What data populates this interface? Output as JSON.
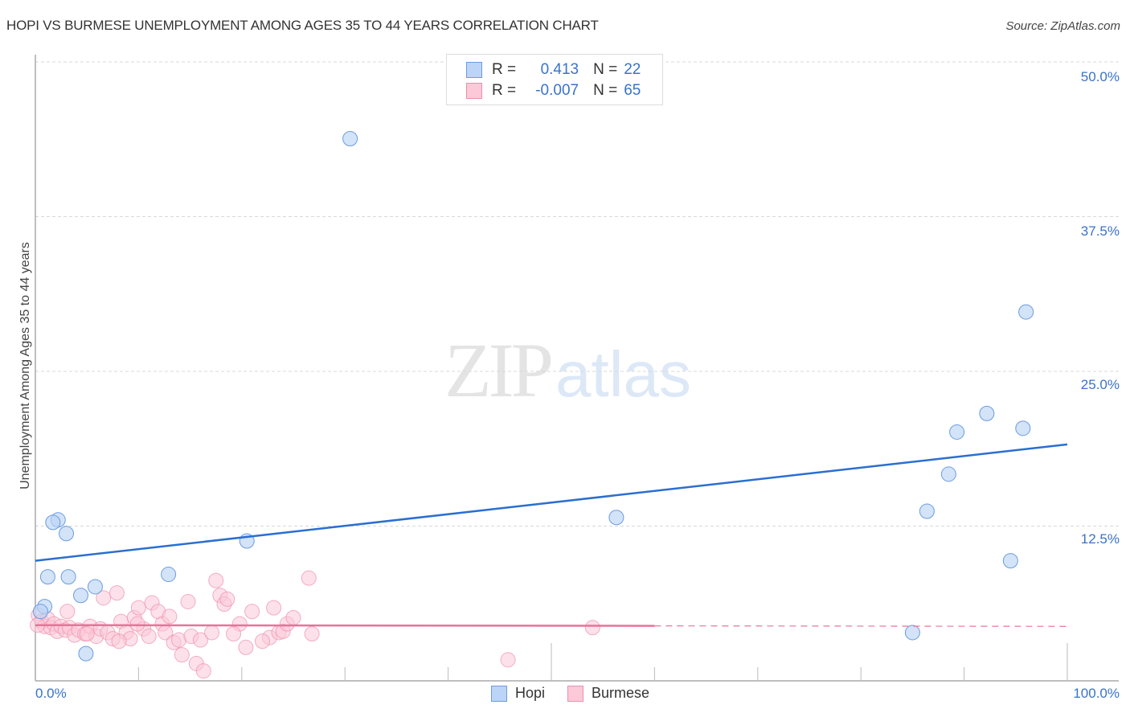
{
  "header": {
    "title": "HOPI VS BURMESE UNEMPLOYMENT AMONG AGES 35 TO 44 YEARS CORRELATION CHART",
    "source": "Source: ZipAtlas.com"
  },
  "watermark": {
    "zip": "ZIP",
    "atlas": "atlas"
  },
  "legend_top": {
    "rows": [
      {
        "series": "Hopi",
        "r_label": "R =",
        "r_value": "0.413",
        "n_label": "N =",
        "n_value": "22"
      },
      {
        "series": "Burmese",
        "r_label": "R =",
        "r_value": "-0.007",
        "n_label": "N =",
        "n_value": "65"
      }
    ]
  },
  "legend_bottom": {
    "items": [
      "Hopi",
      "Burmese"
    ]
  },
  "axes": {
    "ylabel": "Unemployment Among Ages 35 to 44 years",
    "yticks": [
      "50.0%",
      "37.5%",
      "25.0%",
      "12.5%"
    ],
    "xticks": [
      "0.0%",
      "100.0%"
    ]
  },
  "colors": {
    "hopi_fill": "#bcd4f5",
    "hopi_stroke": "#6b9de0",
    "hopi_line": "#2b6fd0",
    "burmese_fill": "#fbc9d8",
    "burmese_stroke": "#ec8fab",
    "burmese_line": "#e8739a",
    "tick_text": "#3a72c9"
  },
  "chart_data": {
    "type": "scatter",
    "title": "HOPI VS BURMESE UNEMPLOYMENT AMONG AGES 35 TO 44 YEARS CORRELATION CHART",
    "xlabel": "",
    "ylabel": "Unemployment Among Ages 35 to 44 years",
    "xlim": [
      0,
      100
    ],
    "ylim": [
      0,
      52
    ],
    "x_ticks": [
      "0.0%",
      "100.0%"
    ],
    "y_ticks": [
      "12.5%",
      "25.0%",
      "37.5%",
      "50.0%"
    ],
    "grid": true,
    "legend_position": "bottom-center",
    "series": [
      {
        "name": "Hopi",
        "R": 0.413,
        "N": 22,
        "trend": {
          "x": [
            0,
            100
          ],
          "y": [
            9.7,
            19.1
          ],
          "style": "solid"
        },
        "points": [
          [
            30.5,
            43.8
          ],
          [
            96.0,
            29.8
          ],
          [
            92.2,
            21.6
          ],
          [
            89.3,
            20.1
          ],
          [
            95.7,
            20.4
          ],
          [
            88.5,
            16.7
          ],
          [
            86.4,
            13.7
          ],
          [
            56.3,
            13.2
          ],
          [
            94.5,
            9.7
          ],
          [
            85.0,
            3.9
          ],
          [
            2.2,
            13.0
          ],
          [
            1.7,
            12.8
          ],
          [
            3.0,
            11.9
          ],
          [
            20.5,
            11.3
          ],
          [
            1.2,
            8.4
          ],
          [
            3.2,
            8.4
          ],
          [
            12.9,
            8.6
          ],
          [
            5.8,
            7.6
          ],
          [
            4.4,
            6.9
          ],
          [
            0.9,
            6.0
          ],
          [
            0.5,
            5.6
          ],
          [
            4.9,
            2.2
          ]
        ]
      },
      {
        "name": "Burmese",
        "R": -0.007,
        "N": 65,
        "trend": {
          "x": [
            0,
            100
          ],
          "y": [
            4.5,
            4.4
          ],
          "style": "solid to 60%, dashed after"
        },
        "points": [
          [
            0.3,
            5.3
          ],
          [
            0.6,
            4.8
          ],
          [
            0.9,
            4.4
          ],
          [
            1.2,
            5.0
          ],
          [
            1.5,
            4.3
          ],
          [
            1.8,
            4.6
          ],
          [
            2.1,
            4.0
          ],
          [
            2.5,
            4.4
          ],
          [
            2.9,
            4.1
          ],
          [
            3.3,
            4.3
          ],
          [
            3.8,
            3.7
          ],
          [
            4.2,
            4.1
          ],
          [
            4.8,
            3.8
          ],
          [
            5.3,
            4.4
          ],
          [
            5.9,
            3.6
          ],
          [
            6.3,
            4.2
          ],
          [
            7.0,
            3.9
          ],
          [
            7.5,
            3.4
          ],
          [
            3.1,
            5.6
          ],
          [
            6.6,
            6.7
          ],
          [
            7.9,
            7.1
          ],
          [
            8.3,
            4.8
          ],
          [
            8.8,
            3.9
          ],
          [
            9.2,
            3.4
          ],
          [
            9.6,
            5.1
          ],
          [
            10.0,
            5.9
          ],
          [
            10.5,
            4.2
          ],
          [
            11.0,
            3.6
          ],
          [
            11.3,
            6.3
          ],
          [
            11.9,
            5.6
          ],
          [
            12.3,
            4.6
          ],
          [
            12.6,
            3.9
          ],
          [
            13.0,
            5.2
          ],
          [
            13.4,
            3.1
          ],
          [
            13.9,
            3.3
          ],
          [
            14.2,
            2.1
          ],
          [
            14.8,
            6.4
          ],
          [
            15.1,
            3.6
          ],
          [
            15.6,
            1.4
          ],
          [
            16.0,
            3.3
          ],
          [
            16.3,
            0.8
          ],
          [
            17.1,
            3.9
          ],
          [
            17.5,
            8.1
          ],
          [
            17.9,
            6.9
          ],
          [
            18.3,
            6.2
          ],
          [
            18.6,
            6.6
          ],
          [
            19.8,
            4.6
          ],
          [
            20.4,
            2.7
          ],
          [
            21.0,
            5.6
          ],
          [
            22.7,
            3.5
          ],
          [
            23.1,
            5.9
          ],
          [
            23.6,
            3.9
          ],
          [
            24.0,
            4.0
          ],
          [
            24.4,
            4.6
          ],
          [
            25.0,
            5.1
          ],
          [
            26.5,
            8.3
          ],
          [
            26.8,
            3.8
          ],
          [
            45.8,
            1.7
          ],
          [
            54.0,
            4.3
          ],
          [
            22.0,
            3.2
          ],
          [
            19.2,
            3.8
          ],
          [
            9.9,
            4.6
          ],
          [
            8.1,
            3.2
          ],
          [
            5.0,
            3.8
          ],
          [
            0.2,
            4.5
          ]
        ]
      }
    ]
  }
}
